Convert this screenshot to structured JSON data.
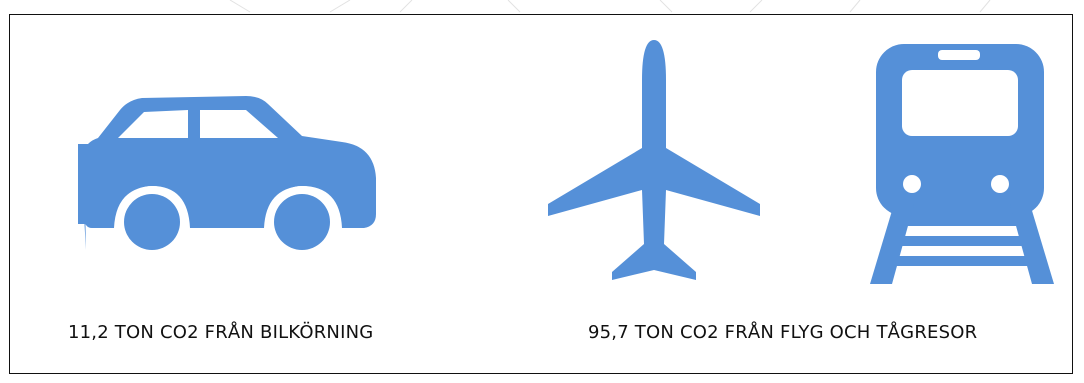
{
  "colors": {
    "icon": "#5590d8",
    "frame": "#111111",
    "background": "#ffffff"
  },
  "icons": [
    {
      "name": "car-icon"
    },
    {
      "name": "airplane-icon"
    },
    {
      "name": "train-icon"
    }
  ],
  "captions": {
    "car": "11,2 TON CO2 FRÅN BILKÖRNING",
    "travel": "95,7 TON CO2 FRÅN FLYG OCH TÅGRESOR"
  }
}
